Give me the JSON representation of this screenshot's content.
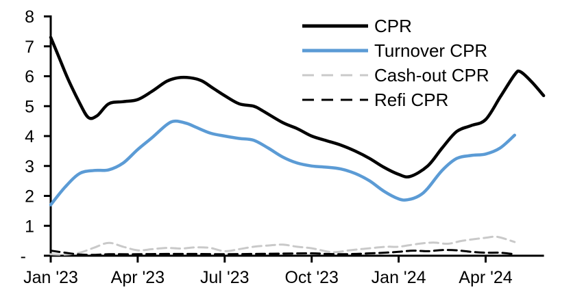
{
  "chart_data": {
    "type": "line",
    "title": "",
    "grid": false,
    "legend_position": "top-right-inside",
    "x_axis": {
      "unit": "month_index_from_Jan_2023",
      "range": [
        0,
        17
      ],
      "ticks": [
        {
          "pos": 0,
          "label": "Jan '23"
        },
        {
          "pos": 3,
          "label": "Apr '23"
        },
        {
          "pos": 6,
          "label": "Jul '23"
        },
        {
          "pos": 9,
          "label": "Oct '23"
        },
        {
          "pos": 12,
          "label": "Jan '24"
        },
        {
          "pos": 15,
          "label": "Apr '24"
        }
      ]
    },
    "y_axis": {
      "range": [
        0,
        8
      ],
      "ticks": [
        {
          "value": 0,
          "label": "-"
        },
        {
          "value": 1,
          "label": "1"
        },
        {
          "value": 2,
          "label": "2"
        },
        {
          "value": 3,
          "label": "3"
        },
        {
          "value": 4,
          "label": "4"
        },
        {
          "value": 5,
          "label": "5"
        },
        {
          "value": 6,
          "label": "6"
        },
        {
          "value": 7,
          "label": "7"
        },
        {
          "value": 8,
          "label": "8"
        }
      ]
    },
    "series": [
      {
        "name": "CPR",
        "color": "#000000",
        "style": "solid",
        "width": 4.5,
        "points": [
          [
            0,
            7.3
          ],
          [
            0.3,
            6.6
          ],
          [
            0.6,
            5.9
          ],
          [
            1,
            5.1
          ],
          [
            1.3,
            4.62
          ],
          [
            1.6,
            4.68
          ],
          [
            2,
            5.08
          ],
          [
            2.5,
            5.15
          ],
          [
            3,
            5.22
          ],
          [
            3.5,
            5.5
          ],
          [
            4,
            5.83
          ],
          [
            4.4,
            5.95
          ],
          [
            4.8,
            5.95
          ],
          [
            5.2,
            5.85
          ],
          [
            5.6,
            5.6
          ],
          [
            6,
            5.35
          ],
          [
            6.5,
            5.08
          ],
          [
            7,
            5.0
          ],
          [
            7.3,
            4.85
          ],
          [
            8,
            4.45
          ],
          [
            8.5,
            4.25
          ],
          [
            9,
            4.0
          ],
          [
            9.5,
            3.85
          ],
          [
            10,
            3.7
          ],
          [
            10.5,
            3.5
          ],
          [
            11,
            3.25
          ],
          [
            11.5,
            2.95
          ],
          [
            12,
            2.72
          ],
          [
            12.4,
            2.65
          ],
          [
            13,
            3.0
          ],
          [
            13.5,
            3.6
          ],
          [
            14,
            4.15
          ],
          [
            14.5,
            4.35
          ],
          [
            15,
            4.55
          ],
          [
            15.5,
            5.3
          ],
          [
            16,
            6.05
          ],
          [
            16.2,
            6.15
          ],
          [
            16.6,
            5.8
          ],
          [
            17,
            5.35
          ]
        ]
      },
      {
        "name": "Turnover CPR",
        "color": "#5B9BD5",
        "style": "solid",
        "width": 4.5,
        "points": [
          [
            0,
            1.7
          ],
          [
            0.5,
            2.3
          ],
          [
            1,
            2.75
          ],
          [
            1.5,
            2.85
          ],
          [
            2,
            2.87
          ],
          [
            2.5,
            3.1
          ],
          [
            3,
            3.55
          ],
          [
            3.5,
            3.95
          ],
          [
            4,
            4.38
          ],
          [
            4.3,
            4.5
          ],
          [
            4.7,
            4.42
          ],
          [
            5,
            4.3
          ],
          [
            5.5,
            4.1
          ],
          [
            6,
            4.0
          ],
          [
            6.5,
            3.92
          ],
          [
            7,
            3.86
          ],
          [
            7.5,
            3.6
          ],
          [
            8,
            3.3
          ],
          [
            8.5,
            3.1
          ],
          [
            9,
            3.0
          ],
          [
            9.5,
            2.96
          ],
          [
            10,
            2.9
          ],
          [
            10.5,
            2.75
          ],
          [
            11,
            2.5
          ],
          [
            11.5,
            2.15
          ],
          [
            12,
            1.9
          ],
          [
            12.3,
            1.87
          ],
          [
            12.7,
            2.0
          ],
          [
            13,
            2.25
          ],
          [
            13.5,
            2.85
          ],
          [
            14,
            3.25
          ],
          [
            14.5,
            3.35
          ],
          [
            15,
            3.4
          ],
          [
            15.5,
            3.6
          ],
          [
            16,
            4.03
          ]
        ]
      },
      {
        "name": "Cash-out CPR",
        "color": "#C9C9C9",
        "style": "dashed",
        "width": 3,
        "points": [
          [
            0,
            0.05
          ],
          [
            0.5,
            0.04
          ],
          [
            1,
            0.1
          ],
          [
            1.5,
            0.27
          ],
          [
            2,
            0.43
          ],
          [
            2.5,
            0.3
          ],
          [
            3,
            0.18
          ],
          [
            3.5,
            0.22
          ],
          [
            4,
            0.26
          ],
          [
            4.5,
            0.24
          ],
          [
            5,
            0.28
          ],
          [
            5.5,
            0.26
          ],
          [
            6,
            0.15
          ],
          [
            6.5,
            0.22
          ],
          [
            7,
            0.3
          ],
          [
            7.5,
            0.34
          ],
          [
            8,
            0.37
          ],
          [
            8.5,
            0.3
          ],
          [
            9,
            0.25
          ],
          [
            9.7,
            0.12
          ],
          [
            10.3,
            0.18
          ],
          [
            11,
            0.25
          ],
          [
            11.6,
            0.3
          ],
          [
            12,
            0.3
          ],
          [
            12.7,
            0.4
          ],
          [
            13.2,
            0.44
          ],
          [
            13.7,
            0.4
          ],
          [
            14.2,
            0.5
          ],
          [
            15,
            0.6
          ],
          [
            15.4,
            0.63
          ],
          [
            16,
            0.46
          ]
        ]
      },
      {
        "name": "Refi CPR",
        "color": "#000000",
        "style": "dashed",
        "width": 3,
        "points": [
          [
            0,
            0.17
          ],
          [
            0.5,
            0.1
          ],
          [
            1,
            0.04
          ],
          [
            1.5,
            0.03
          ],
          [
            2,
            0.05
          ],
          [
            3,
            0.05
          ],
          [
            4,
            0.06
          ],
          [
            5,
            0.06
          ],
          [
            6,
            0.05
          ],
          [
            7,
            0.06
          ],
          [
            8,
            0.07
          ],
          [
            9,
            0.08
          ],
          [
            9.5,
            0.06
          ],
          [
            10,
            0.05
          ],
          [
            10.5,
            0.06
          ],
          [
            11,
            0.08
          ],
          [
            11.5,
            0.1
          ],
          [
            12,
            0.13
          ],
          [
            12.5,
            0.17
          ],
          [
            13,
            0.15
          ],
          [
            13.5,
            0.19
          ],
          [
            14,
            0.18
          ],
          [
            14.5,
            0.13
          ],
          [
            15,
            0.1
          ],
          [
            15.5,
            0.1
          ],
          [
            16,
            0.05
          ]
        ]
      }
    ]
  }
}
